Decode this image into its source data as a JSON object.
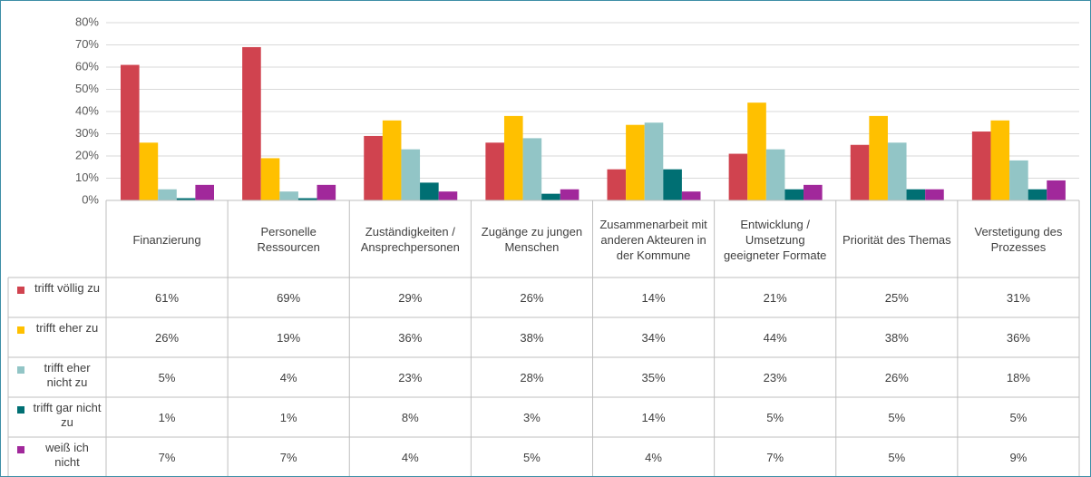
{
  "chart_data": {
    "type": "bar",
    "categories": [
      "Finanzierung",
      "Personelle Ressourcen",
      "Zuständigkeiten / Ansprechpersonen",
      "Zugänge zu jungen Menschen",
      "Zusammenarbeit mit anderen Akteuren in der Kommune",
      "Entwicklung / Umsetzung geeigneter Formate",
      "Priorität des Themas",
      "Verstetigung des Prozesses"
    ],
    "series": [
      {
        "name": "trifft völlig zu",
        "color": "#d0434f",
        "values": [
          61,
          69,
          29,
          26,
          14,
          21,
          25,
          31
        ],
        "value_labels": [
          "61%",
          "69%",
          "29%",
          "26%",
          "14%",
          "21%",
          "25%",
          "31%"
        ]
      },
      {
        "name": "trifft eher zu",
        "color": "#ffc000",
        "values": [
          26,
          19,
          36,
          38,
          34,
          44,
          38,
          36
        ],
        "value_labels": [
          "26%",
          "19%",
          "36%",
          "38%",
          "34%",
          "44%",
          "38%",
          "36%"
        ]
      },
      {
        "name": "trifft eher nicht zu",
        "color": "#92c5c6",
        "values": [
          5,
          4,
          23,
          28,
          35,
          23,
          26,
          18
        ],
        "value_labels": [
          "5%",
          "4%",
          "23%",
          "28%",
          "35%",
          "23%",
          "26%",
          "18%"
        ]
      },
      {
        "name": "trifft gar nicht zu",
        "color": "#006f73",
        "values": [
          1,
          1,
          8,
          3,
          14,
          5,
          5,
          5
        ],
        "value_labels": [
          "1%",
          "1%",
          "8%",
          "3%",
          "14%",
          "5%",
          "5%",
          "5%"
        ]
      },
      {
        "name": "weiß ich nicht",
        "color": "#a1289b",
        "values": [
          7,
          7,
          4,
          5,
          4,
          7,
          5,
          9
        ],
        "value_labels": [
          "7%",
          "7%",
          "4%",
          "5%",
          "4%",
          "7%",
          "5%",
          "9%"
        ]
      }
    ],
    "ylim": [
      0,
      80
    ],
    "yticks": [
      {
        "value": 0,
        "label": "0%"
      },
      {
        "value": 10,
        "label": "10%"
      },
      {
        "value": 20,
        "label": "20%"
      },
      {
        "value": 30,
        "label": "30%"
      },
      {
        "value": 40,
        "label": "40%"
      },
      {
        "value": 50,
        "label": "50%"
      },
      {
        "value": 60,
        "label": "60%"
      },
      {
        "value": 70,
        "label": "70%"
      },
      {
        "value": 80,
        "label": "80%"
      }
    ],
    "grid": true
  }
}
